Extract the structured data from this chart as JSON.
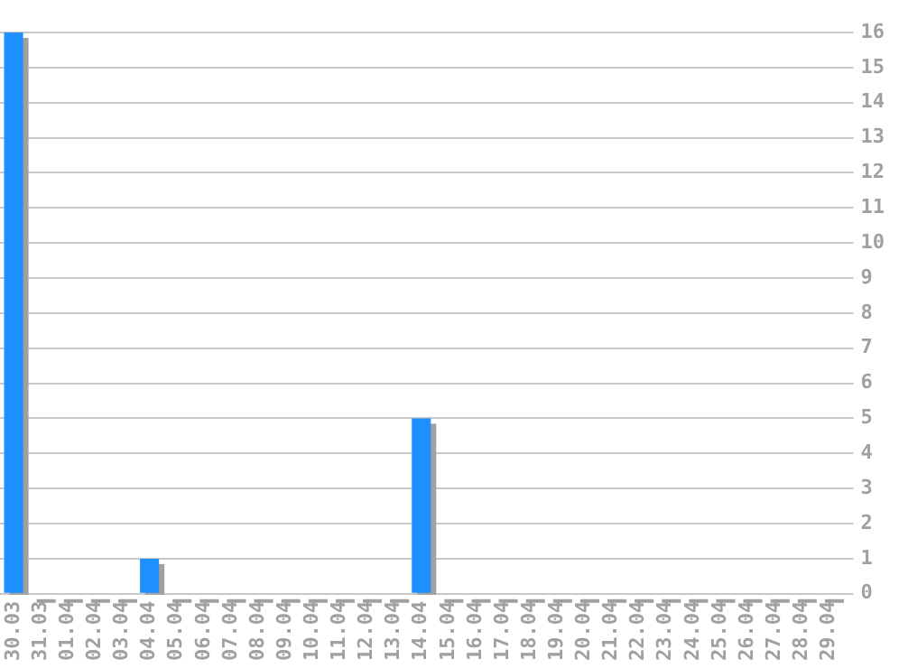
{
  "chart_data": {
    "type": "bar",
    "categories": [
      "30.03",
      "31.03",
      "01.04",
      "02.04",
      "03.04",
      "04.04",
      "05.04",
      "06.04",
      "07.04",
      "08.04",
      "09.04",
      "10.04",
      "11.04",
      "12.04",
      "13.04",
      "14.04",
      "15.04",
      "16.04",
      "17.04",
      "18.04",
      "19.04",
      "20.04",
      "21.04",
      "22.04",
      "23.04",
      "24.04",
      "25.04",
      "26.04",
      "27.04",
      "28.04",
      "29.04"
    ],
    "values": [
      16,
      0,
      0,
      0,
      0,
      1,
      0,
      0,
      0,
      0,
      0,
      0,
      0,
      0,
      0,
      5,
      0,
      0,
      0,
      0,
      0,
      0,
      0,
      0,
      0,
      0,
      0,
      0,
      0,
      0,
      0
    ],
    "color": "#1e90ff",
    "ylim": [
      0,
      16
    ],
    "yticks": [
      0,
      1,
      2,
      3,
      4,
      5,
      6,
      7,
      8,
      9,
      10,
      11,
      12,
      13,
      14,
      15,
      16
    ],
    "grid": "y",
    "legend": false
  }
}
